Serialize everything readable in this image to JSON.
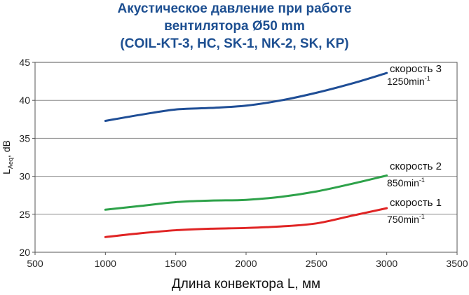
{
  "chart_data": {
    "type": "line",
    "title": [
      "Акустическое давление при работе",
      "вентилятора Ø50 mm",
      "(COIL-KT-3, HC, SK-1, NK-2, SK, KP)"
    ],
    "xlabel": "Длина конвектора L, мм",
    "ylabel_main": "L",
    "ylabel_sub": "Aeq",
    "ylabel_rest": ", dB",
    "xlim": [
      500,
      3500
    ],
    "ylim": [
      20,
      45
    ],
    "xticks": [
      500,
      1000,
      1500,
      2000,
      2500,
      3000,
      3500
    ],
    "yticks": [
      20,
      25,
      30,
      35,
      40,
      45
    ],
    "x": [
      1000,
      1250,
      1500,
      1750,
      2000,
      2250,
      2500,
      2750,
      3000
    ],
    "series": [
      {
        "label": "скорость 3",
        "rpm": "1250min",
        "sup": "-1",
        "color": "#1f4e96",
        "values": [
          37.3,
          38.1,
          38.8,
          39.0,
          39.3,
          40.0,
          41.0,
          42.2,
          43.6
        ]
      },
      {
        "label": "скорость 2",
        "rpm": "850min",
        "sup": "-1",
        "color": "#2ea24a",
        "values": [
          25.6,
          26.1,
          26.6,
          26.8,
          26.9,
          27.3,
          28.0,
          29.0,
          30.1
        ]
      },
      {
        "label": "скорость 1",
        "rpm": "750min",
        "sup": "-1",
        "color": "#e02424",
        "values": [
          22.0,
          22.5,
          22.9,
          23.1,
          23.2,
          23.4,
          23.8,
          24.8,
          25.8
        ]
      }
    ],
    "grid": {
      "horizontal": true,
      "vertical": false
    },
    "legend": "inline-right"
  }
}
